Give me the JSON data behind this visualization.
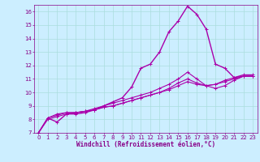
{
  "bg_color": "#cceeff",
  "grid_color": "#aadddd",
  "line_color": "#aa00aa",
  "marker_color": "#aa00aa",
  "xlabel": "Windchill (Refroidissement éolien,°C)",
  "xlabel_color": "#880088",
  "tick_color": "#880088",
  "xlim": [
    -0.5,
    23.5
  ],
  "ylim": [
    7,
    16.5
  ],
  "yticks": [
    7,
    8,
    9,
    10,
    11,
    12,
    13,
    14,
    15,
    16
  ],
  "xticks": [
    0,
    1,
    2,
    3,
    4,
    5,
    6,
    7,
    8,
    9,
    10,
    11,
    12,
    13,
    14,
    15,
    16,
    17,
    18,
    19,
    20,
    21,
    22,
    23
  ],
  "line1_x": [
    0,
    1,
    2,
    3,
    4,
    5,
    6,
    7,
    8,
    9,
    10,
    11,
    12,
    13,
    14,
    15,
    16,
    17,
    18,
    19,
    20,
    21,
    22,
    23
  ],
  "line1_y": [
    7.0,
    8.1,
    7.8,
    8.4,
    8.4,
    8.5,
    8.7,
    9.0,
    9.3,
    9.6,
    10.4,
    11.8,
    12.1,
    13.0,
    14.5,
    15.3,
    16.4,
    15.8,
    14.7,
    12.1,
    11.8,
    11.1,
    11.3,
    11.3
  ],
  "line2_x": [
    0,
    1,
    2,
    3,
    4,
    5,
    6,
    7,
    8,
    9,
    10,
    11,
    12,
    13,
    14,
    15,
    16,
    17,
    18,
    19,
    20,
    21,
    22,
    23
  ],
  "line2_y": [
    7.0,
    8.1,
    8.4,
    8.5,
    8.5,
    8.6,
    8.8,
    9.0,
    9.2,
    9.4,
    9.6,
    9.8,
    10.0,
    10.3,
    10.6,
    11.0,
    11.5,
    11.0,
    10.5,
    10.3,
    10.5,
    10.9,
    11.2,
    11.2
  ],
  "line3_x": [
    0,
    1,
    2,
    3,
    4,
    5,
    6,
    7,
    8,
    9,
    10,
    11,
    12,
    13,
    14,
    15,
    16,
    17,
    18,
    19,
    20,
    21,
    22,
    23
  ],
  "line3_y": [
    7.0,
    8.1,
    8.3,
    8.5,
    8.5,
    8.6,
    8.7,
    8.9,
    9.0,
    9.2,
    9.4,
    9.6,
    9.8,
    10.0,
    10.3,
    10.7,
    11.0,
    10.7,
    10.5,
    10.6,
    10.9,
    11.1,
    11.2,
    11.2
  ],
  "line4_x": [
    0,
    1,
    2,
    3,
    4,
    5,
    6,
    7,
    8,
    9,
    10,
    11,
    12,
    13,
    14,
    15,
    16,
    17,
    18,
    19,
    20,
    21,
    22,
    23
  ],
  "line4_y": [
    7.0,
    8.0,
    8.2,
    8.4,
    8.5,
    8.6,
    8.7,
    8.9,
    9.0,
    9.2,
    9.4,
    9.6,
    9.8,
    10.0,
    10.2,
    10.5,
    10.8,
    10.6,
    10.5,
    10.6,
    10.8,
    11.0,
    11.2,
    11.2
  ],
  "tick_fontsize": 5.0,
  "xlabel_fontsize": 5.5
}
